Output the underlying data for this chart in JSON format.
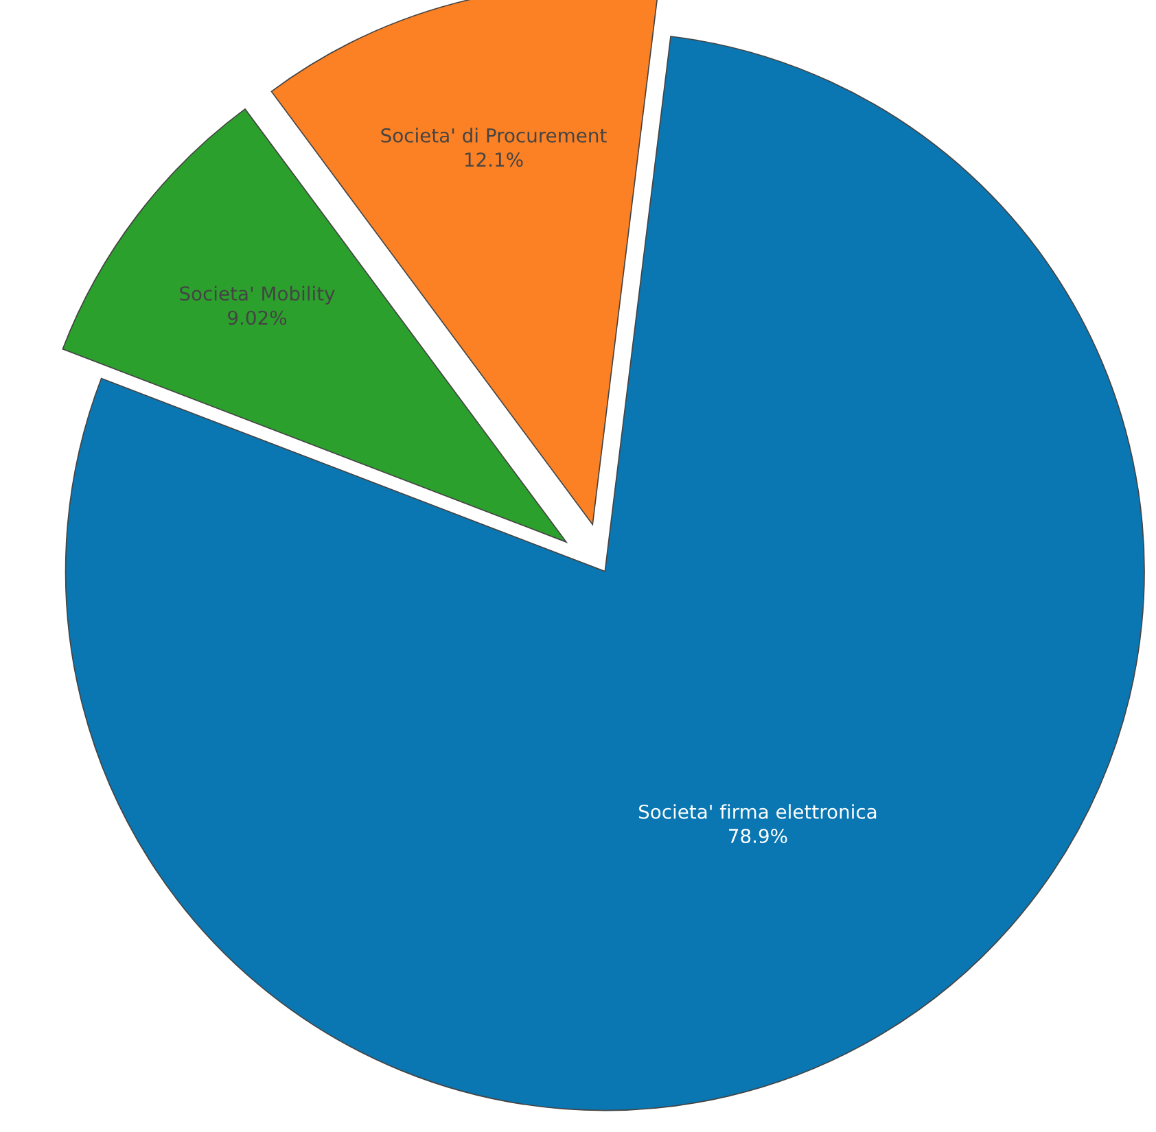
{
  "chart_data": {
    "type": "pie",
    "categories": [
      "Societa' firma elettronica",
      "Societa' Mobility",
      "Societa' di Procurement"
    ],
    "values": [
      78.9,
      9.02,
      12.1
    ],
    "value_labels": [
      "78.9%",
      "9.02%",
      "12.1%"
    ],
    "colors": [
      "#0a77b3",
      "#2ca02c",
      "#fb8124"
    ],
    "legend": false
  }
}
